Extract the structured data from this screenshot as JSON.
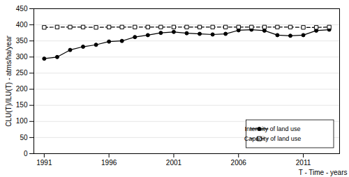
{
  "chart_data": {
    "type": "line",
    "x": [
      1991,
      1992,
      1993,
      1994,
      1995,
      1996,
      1997,
      1998,
      1999,
      2000,
      2001,
      2002,
      2003,
      2004,
      2005,
      2006,
      2007,
      2008,
      2009,
      2010,
      2011,
      2012,
      2013
    ],
    "series": [
      {
        "name": "Intensity of land use",
        "color": "#000000",
        "marker": "circle",
        "line_style": "solid",
        "values": [
          295,
          300,
          322,
          332,
          338,
          348,
          350,
          362,
          368,
          375,
          378,
          374,
          372,
          370,
          372,
          383,
          385,
          382,
          368,
          366,
          368,
          382,
          385
        ]
      },
      {
        "name": "Capacity of land use",
        "color": "#000000",
        "marker": "open_square",
        "line_style": "dashed",
        "values": [
          392,
          393,
          393,
          393,
          392,
          393,
          393,
          393,
          393,
          393,
          393,
          393,
          393,
          393,
          393,
          393,
          393,
          393,
          393,
          393,
          392,
          392,
          393
        ]
      }
    ],
    "xlabel": "T - Time - years",
    "ylabel": "CLU(T)/ILU(T) - atms/ha/year",
    "xlim": [
      1990.2,
      2013.8
    ],
    "xticks": [
      1991,
      1996,
      2001,
      2006,
      2011
    ],
    "ylim": [
      0,
      450
    ],
    "yticks": [
      0,
      50,
      100,
      150,
      200,
      250,
      300,
      350,
      400,
      450
    ],
    "grid": true,
    "legend": "lower right"
  }
}
